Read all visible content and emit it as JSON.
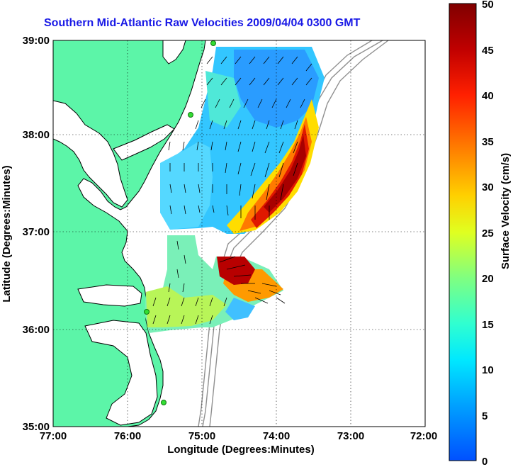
{
  "title": "Southern Mid-Atlantic Raw Velocities 2009/04/04 0300 GMT",
  "x_axis": {
    "label": "Longitude (Degrees:Minutes)",
    "ticks": [
      "77:00",
      "76:00",
      "75:00",
      "74:00",
      "73:00",
      "72:00"
    ]
  },
  "y_axis": {
    "label": "Latitude (Degrees:Minutes)",
    "ticks": [
      "39:00",
      "38:00",
      "37:00",
      "36:00",
      "35:00"
    ]
  },
  "colorbar": {
    "label": "Surface Velocity (cm/s)",
    "ticks": [
      "50",
      "45",
      "40",
      "35",
      "30",
      "25",
      "20",
      "15",
      "10",
      "5",
      "0"
    ],
    "min": 0,
    "max": 50,
    "colors": [
      "#0050ff",
      "#00b8ff",
      "#00ffff",
      "#40ffb0",
      "#c0ff40",
      "#ffff00",
      "#ffa000",
      "#ff3000",
      "#c00000",
      "#800000"
    ]
  },
  "chart_data": {
    "type": "heatmap",
    "xlabel": "Longitude (Degrees:Minutes)",
    "ylabel": "Latitude (Degrees:Minutes)",
    "xlim": [
      -77,
      -72
    ],
    "ylim": [
      35,
      39
    ],
    "grid": true,
    "colors": {
      "land": "#5cf5a8",
      "coastline": "#000000",
      "bathymetry": "#909090",
      "site_marker": "#33dd33"
    }
  }
}
